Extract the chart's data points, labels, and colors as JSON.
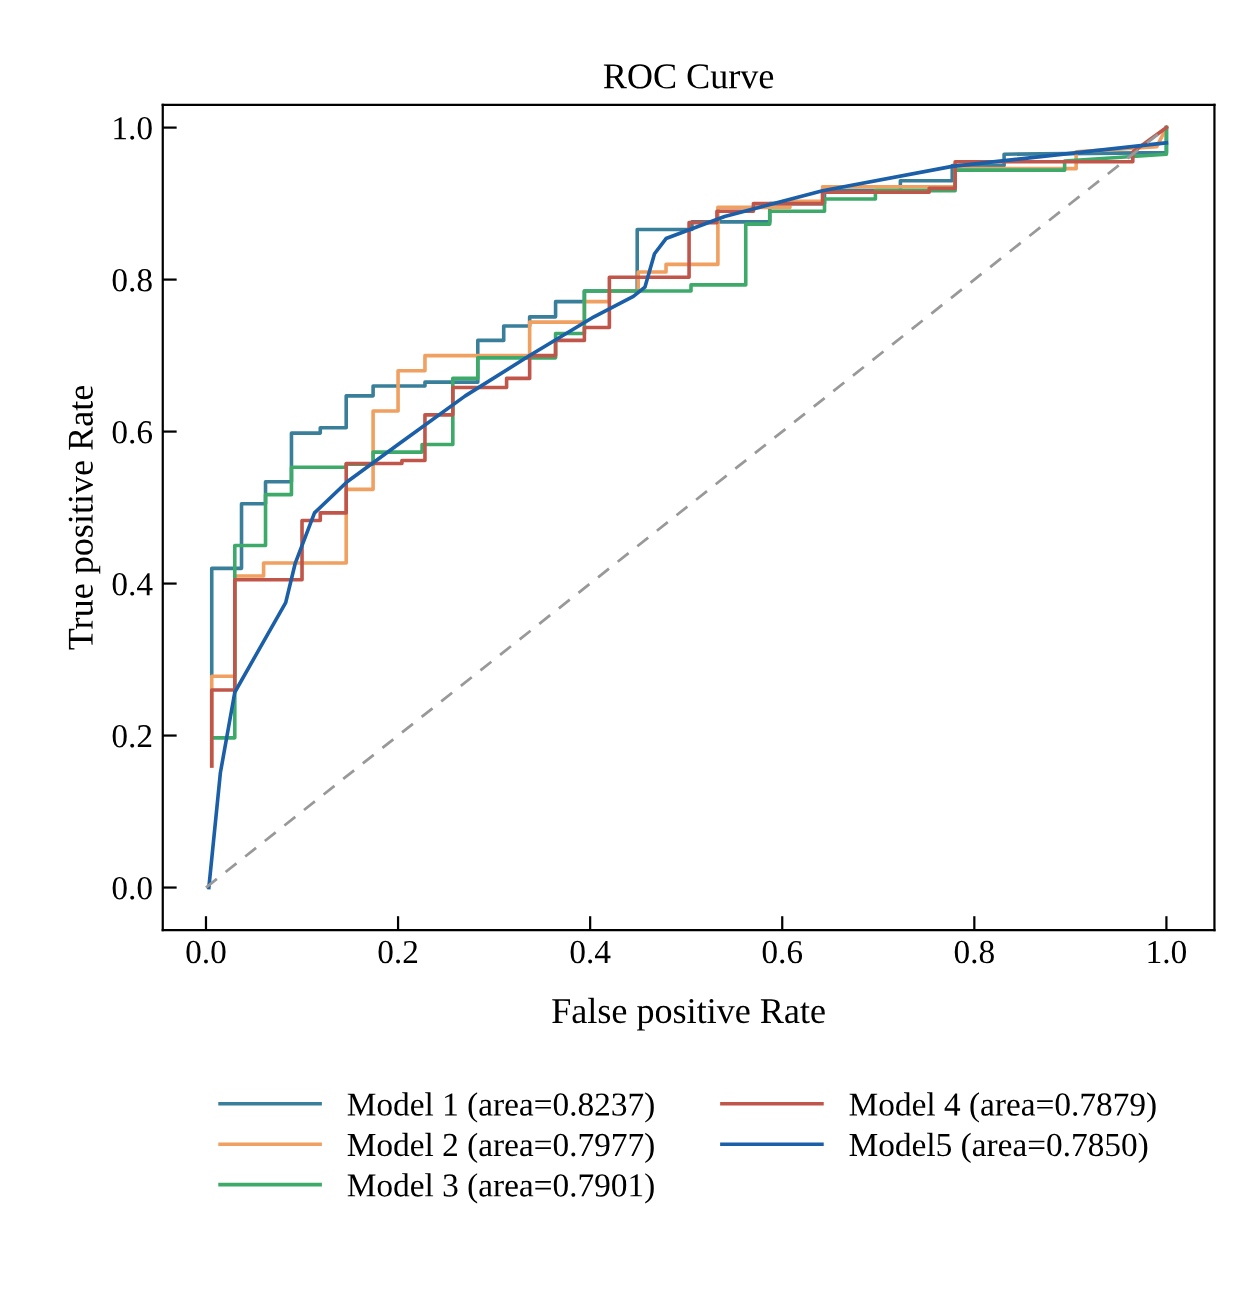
{
  "chart_data": {
    "type": "line",
    "title": "ROC Curve",
    "xlabel": "False positive Rate",
    "ylabel": "True positive Rate",
    "xlim": [
      -0.045,
      1.05
    ],
    "ylim": [
      -0.056,
      1.03
    ],
    "xticks": [
      {
        "value": 0,
        "label": "0.0"
      },
      0.2,
      0.4,
      0.6,
      0.8,
      {
        "value": 1,
        "label": "1.0"
      }
    ],
    "yticks": [
      {
        "value": 0,
        "label": "0.0"
      },
      0.2,
      0.4,
      0.6,
      0.8,
      {
        "value": 1,
        "label": "1.0"
      }
    ],
    "grid": false,
    "legend": "bottom",
    "marker": "none",
    "series": [
      {
        "name": "Model 1 (area=0.8237)",
        "color": "#3a7f9a",
        "x": [
          0.006,
          0.006,
          0.037,
          0.037,
          0.062,
          0.062,
          0.089,
          0.089,
          0.119,
          0.119,
          0.146,
          0.146,
          0.174,
          0.174,
          0.228,
          0.228,
          0.283,
          0.283,
          0.31,
          0.31,
          0.337,
          0.337,
          0.364,
          0.364,
          0.394,
          0.394,
          0.449,
          0.449,
          0.506,
          0.506,
          0.587,
          0.587,
          0.644,
          0.644,
          0.723,
          0.723,
          0.777,
          0.777,
          0.831,
          0.831,
          1.0,
          1.0
        ],
        "values": [
          0.28,
          0.42,
          0.42,
          0.505,
          0.505,
          0.534,
          0.534,
          0.598,
          0.598,
          0.605,
          0.605,
          0.647,
          0.647,
          0.66,
          0.66,
          0.665,
          0.665,
          0.72,
          0.72,
          0.739,
          0.739,
          0.751,
          0.751,
          0.771,
          0.771,
          0.785,
          0.785,
          0.866,
          0.866,
          0.876,
          0.876,
          0.9,
          0.9,
          0.917,
          0.917,
          0.93,
          0.93,
          0.95,
          0.95,
          0.965,
          0.967,
          1.0
        ]
      },
      {
        "name": "Model 2 (area=0.7977)",
        "color": "#f0a060",
        "x": [
          0.006,
          0.006,
          0.03,
          0.03,
          0.06,
          0.06,
          0.146,
          0.146,
          0.174,
          0.174,
          0.2,
          0.2,
          0.228,
          0.228,
          0.337,
          0.337,
          0.394,
          0.394,
          0.42,
          0.42,
          0.45,
          0.45,
          0.479,
          0.479,
          0.533,
          0.533,
          0.608,
          0.608,
          0.642,
          0.642,
          0.78,
          0.78,
          0.906,
          0.906,
          0.99,
          1.0
        ],
        "values": [
          0.16,
          0.278,
          0.278,
          0.41,
          0.41,
          0.427,
          0.427,
          0.524,
          0.524,
          0.627,
          0.627,
          0.68,
          0.68,
          0.7,
          0.7,
          0.744,
          0.744,
          0.771,
          0.771,
          0.785,
          0.785,
          0.81,
          0.81,
          0.82,
          0.82,
          0.895,
          0.895,
          0.903,
          0.903,
          0.922,
          0.922,
          0.946,
          0.946,
          0.968,
          0.975,
          1.0
        ]
      },
      {
        "name": "Model 3 (area=0.7901)",
        "color": "#3daa6a",
        "x": [
          0.009,
          0.03,
          0.03,
          0.062,
          0.062,
          0.089,
          0.089,
          0.146,
          0.146,
          0.174,
          0.174,
          0.225,
          0.225,
          0.257,
          0.257,
          0.283,
          0.283,
          0.364,
          0.364,
          0.394,
          0.394,
          0.505,
          0.505,
          0.562,
          0.562,
          0.587,
          0.587,
          0.644,
          0.644,
          0.697,
          0.697,
          0.78,
          0.78,
          0.894,
          0.894,
          1.0,
          1.0
        ],
        "values": [
          0.197,
          0.197,
          0.45,
          0.45,
          0.517,
          0.517,
          0.553,
          0.553,
          0.557,
          0.557,
          0.573,
          0.573,
          0.583,
          0.583,
          0.67,
          0.67,
          0.697,
          0.697,
          0.729,
          0.729,
          0.785,
          0.785,
          0.793,
          0.793,
          0.873,
          0.873,
          0.89,
          0.89,
          0.906,
          0.906,
          0.917,
          0.917,
          0.944,
          0.944,
          0.956,
          0.965,
          1.0
        ]
      },
      {
        "name": "Model 4 (area=0.7879)",
        "color": "#c0564a",
        "x": [
          0.006,
          0.006,
          0.03,
          0.03,
          0.1,
          0.1,
          0.119,
          0.119,
          0.146,
          0.146,
          0.204,
          0.204,
          0.228,
          0.228,
          0.257,
          0.257,
          0.313,
          0.313,
          0.337,
          0.337,
          0.364,
          0.364,
          0.394,
          0.394,
          0.42,
          0.42,
          0.503,
          0.503,
          0.532,
          0.532,
          0.57,
          0.57,
          0.642,
          0.642,
          0.753,
          0.753,
          0.78,
          0.78,
          0.965,
          0.965,
          1.0
        ],
        "values": [
          0.16,
          0.26,
          0.26,
          0.405,
          0.405,
          0.483,
          0.483,
          0.493,
          0.493,
          0.558,
          0.558,
          0.562,
          0.562,
          0.622,
          0.622,
          0.658,
          0.658,
          0.67,
          0.67,
          0.7,
          0.7,
          0.72,
          0.72,
          0.737,
          0.737,
          0.803,
          0.803,
          0.875,
          0.875,
          0.89,
          0.89,
          0.9,
          0.9,
          0.915,
          0.915,
          0.92,
          0.92,
          0.955,
          0.955,
          0.968,
          1.0
        ]
      },
      {
        "name": "Model5 (area=0.7850)",
        "color": "#1a5fa8",
        "x": [
          0.003,
          0.015,
          0.03,
          0.083,
          0.093,
          0.113,
          0.147,
          0.2,
          0.27,
          0.337,
          0.404,
          0.445,
          0.457,
          0.467,
          0.479,
          0.54,
          0.642,
          0.777,
          1.0
        ],
        "values": [
          0.0,
          0.151,
          0.257,
          0.375,
          0.427,
          0.493,
          0.534,
          0.583,
          0.647,
          0.7,
          0.751,
          0.778,
          0.79,
          0.834,
          0.854,
          0.883,
          0.917,
          0.949,
          0.98
        ]
      },
      {
        "color": "#999999",
        "line_style": "dashed",
        "x": [
          0.0,
          1.0
        ],
        "values": [
          0.0,
          1.0
        ]
      }
    ]
  }
}
